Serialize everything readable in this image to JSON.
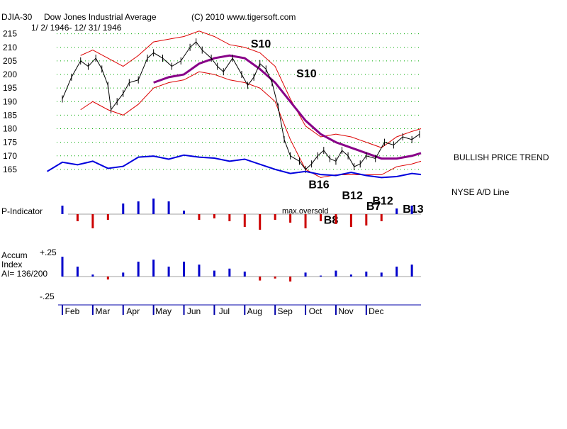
{
  "header": {
    "ticker": "DJIA-30",
    "name": "Dow Jones Industrial Average",
    "copyright": "(C) 2010 www.tigersoft.com",
    "date_range": "1/ 2/ 1946- 12/ 31/ 1946"
  },
  "colors": {
    "price": "#000000",
    "bands": "#dd0000",
    "ma": "#880088",
    "ad_line": "#0000dd",
    "positive": "#0000cc",
    "negative": "#cc0000",
    "grid": "#00aa00"
  },
  "chart_data": [
    {
      "type": "line",
      "title": "DJIA-30 Dow Jones Industrial Average 1946",
      "ylim": [
        160,
        217
      ],
      "yticks": [
        165,
        170,
        175,
        180,
        185,
        190,
        195,
        200,
        205,
        210,
        215
      ],
      "xlim": [
        1,
        12.8
      ],
      "x_labels": [
        "Feb",
        "Mar",
        "Apr",
        "May",
        "Jun",
        "Jul",
        "Aug",
        "Sep",
        "Oct",
        "Nov",
        "Dec"
      ],
      "series": [
        {
          "name": "DJIA close",
          "x": [
            1.0,
            1.3,
            1.6,
            1.85,
            2.1,
            2.3,
            2.5,
            2.6,
            2.8,
            3.0,
            3.2,
            3.5,
            3.8,
            4.0,
            4.3,
            4.6,
            4.9,
            5.2,
            5.4,
            5.6,
            5.9,
            6.1,
            6.3,
            6.6,
            6.9,
            7.1,
            7.3,
            7.5,
            7.7,
            7.9,
            8.1,
            8.3,
            8.5,
            8.8,
            9.0,
            9.2,
            9.4,
            9.6,
            9.8,
            10.0,
            10.2,
            10.4,
            10.6,
            10.8,
            11.0,
            11.3,
            11.6,
            11.9,
            12.2,
            12.5,
            12.75
          ],
          "values": [
            191,
            199,
            205,
            203,
            206,
            202,
            196,
            187,
            190,
            193,
            197,
            198,
            206,
            208,
            206,
            203,
            205,
            210,
            212,
            209,
            206,
            203,
            201,
            206,
            200,
            196,
            199,
            204,
            202,
            197,
            188,
            176,
            170,
            168,
            165,
            167,
            170,
            172,
            169,
            168,
            172,
            170,
            166,
            167,
            170,
            169,
            175,
            174,
            177,
            176,
            178
          ]
        },
        {
          "name": "Upper band",
          "x": [
            1.6,
            2.0,
            2.5,
            3.0,
            3.5,
            4.0,
            4.5,
            5.0,
            5.5,
            6.0,
            6.5,
            7.0,
            7.5,
            8.0,
            8.5,
            9.0,
            9.5,
            10.0,
            10.5,
            11.0,
            11.5,
            12.0,
            12.5,
            12.8
          ],
          "values": [
            207,
            209,
            206,
            203,
            207,
            212,
            213,
            214,
            216,
            214,
            211,
            210,
            208,
            203,
            191,
            181,
            177,
            178,
            177,
            175,
            173,
            177,
            179,
            180
          ]
        },
        {
          "name": "Lower band",
          "x": [
            1.6,
            2.0,
            2.5,
            3.0,
            3.5,
            4.0,
            4.5,
            5.0,
            5.5,
            6.0,
            6.5,
            7.0,
            7.5,
            8.0,
            8.5,
            9.0,
            9.5,
            10.0,
            10.5,
            11.0,
            11.5,
            12.0,
            12.5,
            12.8
          ],
          "values": [
            187,
            190,
            187,
            185,
            189,
            195,
            197,
            198,
            201,
            200,
            198,
            197,
            195,
            190,
            176,
            165,
            162,
            163,
            163,
            163,
            163,
            166,
            167,
            168
          ]
        },
        {
          "name": "Moving average",
          "x": [
            4.0,
            4.5,
            5.0,
            5.5,
            6.0,
            6.5,
            7.0,
            7.5,
            8.0,
            8.5,
            9.0,
            9.5,
            10.0,
            10.5,
            11.0,
            11.5,
            12.0,
            12.5,
            12.8
          ],
          "values": [
            197,
            199,
            200,
            204,
            206,
            207,
            206,
            202,
            197,
            190,
            183,
            178,
            175,
            173,
            171,
            169,
            169,
            170,
            171
          ]
        }
      ],
      "annotations": [
        {
          "text": "S10",
          "x": 7.2,
          "y": 210
        },
        {
          "text": "S10",
          "x": 8.7,
          "y": 199
        },
        {
          "text": "B16",
          "x": 9.1,
          "y": 158
        },
        {
          "text": "B12",
          "x": 10.2,
          "y": 154
        },
        {
          "text": "B12",
          "x": 11.2,
          "y": 152
        },
        {
          "text": "B7",
          "x": 11.0,
          "y": 150
        },
        {
          "text": "B13",
          "x": 12.2,
          "y": 149
        },
        {
          "text": "B8",
          "x": 9.6,
          "y": 145
        }
      ],
      "right_labels": [
        "BULLISH PRICE TREND",
        "NYSE A/D Line"
      ]
    },
    {
      "type": "line",
      "title": "NYSE A/D Line",
      "x": [
        0.5,
        1.0,
        1.5,
        2.0,
        2.5,
        3.0,
        3.5,
        4.0,
        4.5,
        5.0,
        5.5,
        6.0,
        6.5,
        7.0,
        7.5,
        8.0,
        8.5,
        9.0,
        9.5,
        10.0,
        10.5,
        11.0,
        11.5,
        12.0,
        12.5,
        12.8
      ],
      "values": [
        42,
        60,
        55,
        62,
        48,
        52,
        70,
        72,
        66,
        74,
        70,
        68,
        62,
        66,
        56,
        46,
        38,
        42,
        36,
        34,
        40,
        34,
        30,
        32,
        38,
        36
      ]
    },
    {
      "type": "bar",
      "title": "P-Indicator",
      "label": "max.oversold",
      "x": [
        1.0,
        1.5,
        2.0,
        2.5,
        3.0,
        3.5,
        4.0,
        4.5,
        5.0,
        5.5,
        6.0,
        6.5,
        7.0,
        7.5,
        8.0,
        8.5,
        9.0,
        9.5,
        10.0,
        10.5,
        11.0,
        11.5,
        12.0,
        12.5
      ],
      "values": [
        12,
        -10,
        -20,
        -8,
        15,
        18,
        22,
        18,
        5,
        -8,
        -6,
        -10,
        -18,
        -22,
        -8,
        -12,
        -20,
        -10,
        -14,
        -18,
        -16,
        -10,
        8,
        12
      ]
    },
    {
      "type": "bar",
      "title": "Accum Index",
      "label": "AI= 136/200",
      "ylim": [
        -0.25,
        0.25
      ],
      "yticks": [
        "+.25",
        "-.25"
      ],
      "x": [
        1.0,
        1.5,
        2.0,
        2.5,
        3.0,
        3.5,
        4.0,
        4.5,
        5.0,
        5.5,
        6.0,
        6.5,
        7.0,
        7.5,
        8.0,
        8.5,
        9.0,
        9.5,
        10.0,
        10.5,
        11.0,
        11.5,
        12.0,
        12.5
      ],
      "values": [
        0.2,
        0.1,
        0.02,
        -0.03,
        0.04,
        0.15,
        0.17,
        0.1,
        0.15,
        0.12,
        0.06,
        0.08,
        0.05,
        -0.04,
        -0.02,
        -0.05,
        0.04,
        0.01,
        0.06,
        0.02,
        0.05,
        0.04,
        0.1,
        0.12
      ]
    }
  ]
}
